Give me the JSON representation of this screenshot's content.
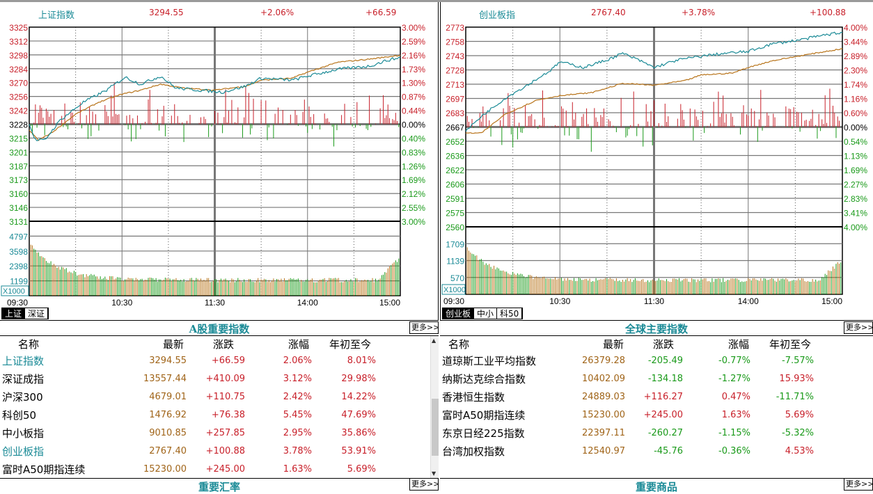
{
  "colors": {
    "up": "#c8202a",
    "down": "#1a9a1a",
    "price_line": "#1a8a96",
    "avg_line": "#b8741a",
    "vol_up": "#b8741a",
    "vol_down": "#1a9a1a"
  },
  "charts": [
    {
      "name": "上证指数",
      "price": "3294.55",
      "pct": "+2.06%",
      "change": "+66.59",
      "price_ticks": [
        "3325",
        "3312",
        "3298",
        "3284",
        "3270",
        "3256",
        "3242",
        "3228",
        "3215",
        "3201",
        "3187",
        "3173",
        "3160",
        "3146",
        "3131"
      ],
      "pct_ticks": [
        "3.00%",
        "2.59%",
        "2.16%",
        "1.73%",
        "1.30%",
        "0.87%",
        "0.44%",
        "0.00%",
        "0.40%",
        "0.83%",
        "1.26%",
        "1.69%",
        "2.12%",
        "2.55%",
        "3.00%"
      ],
      "vol_ticks": [
        "4797",
        "3598",
        "2398",
        "1199"
      ],
      "vol_unit": "X1000",
      "time_ticks": [
        "09:30",
        "10:30",
        "11:30",
        "14:00",
        "15:00"
      ],
      "ylim": [
        3131,
        3325
      ],
      "prev_close": 3228,
      "vol_max": 5997,
      "price_keypoints": [
        [
          0,
          3228
        ],
        [
          4,
          3212
        ],
        [
          10,
          3212
        ],
        [
          20,
          3232
        ],
        [
          35,
          3250
        ],
        [
          50,
          3262
        ],
        [
          62,
          3275
        ],
        [
          72,
          3268
        ],
        [
          85,
          3276
        ],
        [
          95,
          3264
        ],
        [
          110,
          3262
        ],
        [
          125,
          3260
        ],
        [
          140,
          3266
        ],
        [
          150,
          3274
        ],
        [
          170,
          3272
        ],
        [
          180,
          3276
        ],
        [
          200,
          3283
        ],
        [
          220,
          3286
        ],
        [
          232,
          3292
        ],
        [
          240,
          3294.55
        ]
      ],
      "avg_keypoints": [
        [
          0,
          3222
        ],
        [
          6,
          3212
        ],
        [
          15,
          3220
        ],
        [
          30,
          3238
        ],
        [
          45,
          3250
        ],
        [
          60,
          3258
        ],
        [
          72,
          3262
        ],
        [
          85,
          3268
        ],
        [
          100,
          3264
        ],
        [
          120,
          3262
        ],
        [
          140,
          3266
        ],
        [
          150,
          3272
        ],
        [
          170,
          3274
        ],
        [
          180,
          3280
        ],
        [
          200,
          3290
        ],
        [
          220,
          3293
        ],
        [
          240,
          3297
        ]
      ],
      "tabs": [
        "上证",
        "深证"
      ],
      "active_tab": 0
    },
    {
      "name": "创业板指",
      "price": "2767.40",
      "pct": "+3.78%",
      "change": "+100.88",
      "price_ticks": [
        "2773",
        "2758",
        "2743",
        "2728",
        "2713",
        "2697",
        "2683",
        "2667",
        "2652",
        "2636",
        "2622",
        "2606",
        "2591",
        "2575",
        "2560"
      ],
      "pct_ticks": [
        "4.00%",
        "3.44%",
        "2.89%",
        "2.30%",
        "1.74%",
        "1.16%",
        "0.60%",
        "0.00%",
        "0.54%",
        "1.13%",
        "1.69%",
        "2.27%",
        "2.83%",
        "3.41%",
        "4.00%"
      ],
      "vol_ticks": [
        "1709",
        "1139",
        "570"
      ],
      "vol_unit": "X1000",
      "time_ticks": [
        "09:30",
        "10:30",
        "11:30",
        "14:00",
        "15:00"
      ],
      "ylim": [
        2560,
        2773
      ],
      "prev_close": 2667,
      "vol_max": 2280,
      "price_keypoints": [
        [
          0,
          2662
        ],
        [
          10,
          2678
        ],
        [
          25,
          2697
        ],
        [
          40,
          2712
        ],
        [
          55,
          2728
        ],
        [
          60,
          2736
        ],
        [
          75,
          2730
        ],
        [
          90,
          2738
        ],
        [
          100,
          2745
        ],
        [
          110,
          2738
        ],
        [
          120,
          2730
        ],
        [
          135,
          2738
        ],
        [
          150,
          2742
        ],
        [
          165,
          2745
        ],
        [
          180,
          2747
        ],
        [
          195,
          2755
        ],
        [
          215,
          2760
        ],
        [
          230,
          2765
        ],
        [
          240,
          2767.4
        ]
      ],
      "avg_keypoints": [
        [
          0,
          2660
        ],
        [
          10,
          2660
        ],
        [
          25,
          2680
        ],
        [
          45,
          2695
        ],
        [
          60,
          2700
        ],
        [
          80,
          2703
        ],
        [
          100,
          2713
        ],
        [
          120,
          2711
        ],
        [
          140,
          2716
        ],
        [
          150,
          2722
        ],
        [
          170,
          2724
        ],
        [
          180,
          2730
        ],
        [
          195,
          2737
        ],
        [
          215,
          2743
        ],
        [
          240,
          2750
        ]
      ],
      "tabs": [
        "创业板",
        "中小",
        "科50"
      ],
      "active_tab": 0
    }
  ],
  "a_share": {
    "title": "A股重要指数",
    "more": "更多>>",
    "headers": [
      "名称",
      "最新",
      "涨跌",
      "涨幅",
      "年初至今"
    ],
    "rows": [
      {
        "name": "上证指数",
        "last": "3294.55",
        "chg": "+66.59",
        "pct": "2.06%",
        "ytd": "8.01%",
        "name_color": "teal",
        "chg_color": "red",
        "pct_color": "red",
        "ytd_color": "red"
      },
      {
        "name": "深证成指",
        "last": "13557.44",
        "chg": "+410.09",
        "pct": "3.12%",
        "ytd": "29.98%",
        "name_color": "black",
        "chg_color": "red",
        "pct_color": "red",
        "ytd_color": "red"
      },
      {
        "name": "沪深300",
        "last": "4679.01",
        "chg": "+110.75",
        "pct": "2.42%",
        "ytd": "14.22%",
        "name_color": "black",
        "chg_color": "red",
        "pct_color": "red",
        "ytd_color": "red"
      },
      {
        "name": "科创50",
        "last": "1476.92",
        "chg": "+76.38",
        "pct": "5.45%",
        "ytd": "47.69%",
        "name_color": "black",
        "chg_color": "red",
        "pct_color": "red",
        "ytd_color": "red"
      },
      {
        "name": "中小板指",
        "last": "9010.85",
        "chg": "+257.85",
        "pct": "2.95%",
        "ytd": "35.86%",
        "name_color": "black",
        "chg_color": "red",
        "pct_color": "red",
        "ytd_color": "red"
      },
      {
        "name": "创业板指",
        "last": "2767.40",
        "chg": "+100.88",
        "pct": "3.78%",
        "ytd": "53.91%",
        "name_color": "teal",
        "chg_color": "red",
        "pct_color": "red",
        "ytd_color": "red"
      },
      {
        "name": "富时A50期指连续",
        "last": "15230.00",
        "chg": "+245.00",
        "pct": "1.63%",
        "ytd": "5.69%",
        "name_color": "black",
        "chg_color": "red",
        "pct_color": "red",
        "ytd_color": "red"
      }
    ],
    "next_section": "重要汇率",
    "next_more": "更多>>"
  },
  "global": {
    "title": "全球主要指数",
    "more": "更多>>",
    "headers": [
      "名称",
      "最新",
      "涨跌",
      "涨幅",
      "年初至今"
    ],
    "rows": [
      {
        "name": "道琼斯工业平均指数",
        "last": "26379.28",
        "chg": "-205.49",
        "pct": "-0.77%",
        "ytd": "-7.57%",
        "name_color": "black",
        "chg_color": "green",
        "pct_color": "green",
        "ytd_color": "green"
      },
      {
        "name": "纳斯达克综合指数",
        "last": "10402.09",
        "chg": "-134.18",
        "pct": "-1.27%",
        "ytd": "15.93%",
        "name_color": "black",
        "chg_color": "green",
        "pct_color": "green",
        "ytd_color": "red"
      },
      {
        "name": "香港恒生指数",
        "last": "24889.03",
        "chg": "+116.27",
        "pct": "0.47%",
        "ytd": "-11.71%",
        "name_color": "black",
        "chg_color": "red",
        "pct_color": "red",
        "ytd_color": "green"
      },
      {
        "name": "富时A50期指连续",
        "last": "15230.00",
        "chg": "+245.00",
        "pct": "1.63%",
        "ytd": "5.69%",
        "name_color": "black",
        "chg_color": "red",
        "pct_color": "red",
        "ytd_color": "red"
      },
      {
        "name": "东京日经225指数",
        "last": "22397.11",
        "chg": "-260.27",
        "pct": "-1.15%",
        "ytd": "-5.32%",
        "name_color": "black",
        "chg_color": "green",
        "pct_color": "green",
        "ytd_color": "green"
      },
      {
        "name": "台湾加权指数",
        "last": "12540.97",
        "chg": "-45.76",
        "pct": "-0.36%",
        "ytd": "4.53%",
        "name_color": "black",
        "chg_color": "green",
        "pct_color": "green",
        "ytd_color": "red"
      }
    ],
    "next_section": "重要商品",
    "next_more": "更多>>"
  }
}
